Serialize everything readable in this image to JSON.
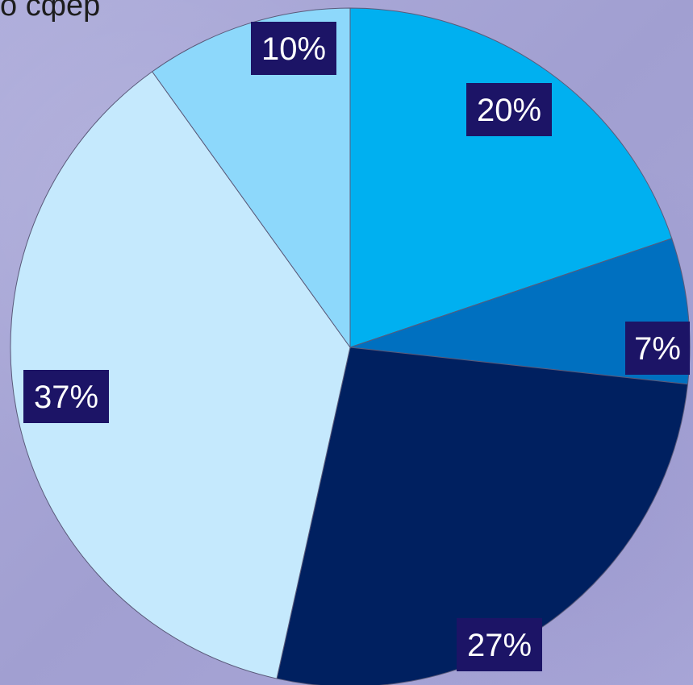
{
  "header": {
    "partial_text": "о сфер"
  },
  "chart_data": {
    "type": "pie",
    "title": "",
    "start_angle_deg": 0,
    "direction": "clockwise",
    "slices": [
      {
        "label": "20%",
        "value": 20,
        "color": "#00b0f0"
      },
      {
        "label": "7%",
        "value": 7,
        "color": "#0070c0"
      },
      {
        "label": "27%",
        "value": 27,
        "color": "#002060"
      },
      {
        "label": "37%",
        "value": 37,
        "color": "#c5e9fd"
      },
      {
        "label": "10%",
        "value": 10,
        "color": "#8dd8fb"
      }
    ],
    "label_box_color": "#1c1466",
    "label_text_color": "#ffffff",
    "slice_edge_color": "#5a5a7a"
  }
}
